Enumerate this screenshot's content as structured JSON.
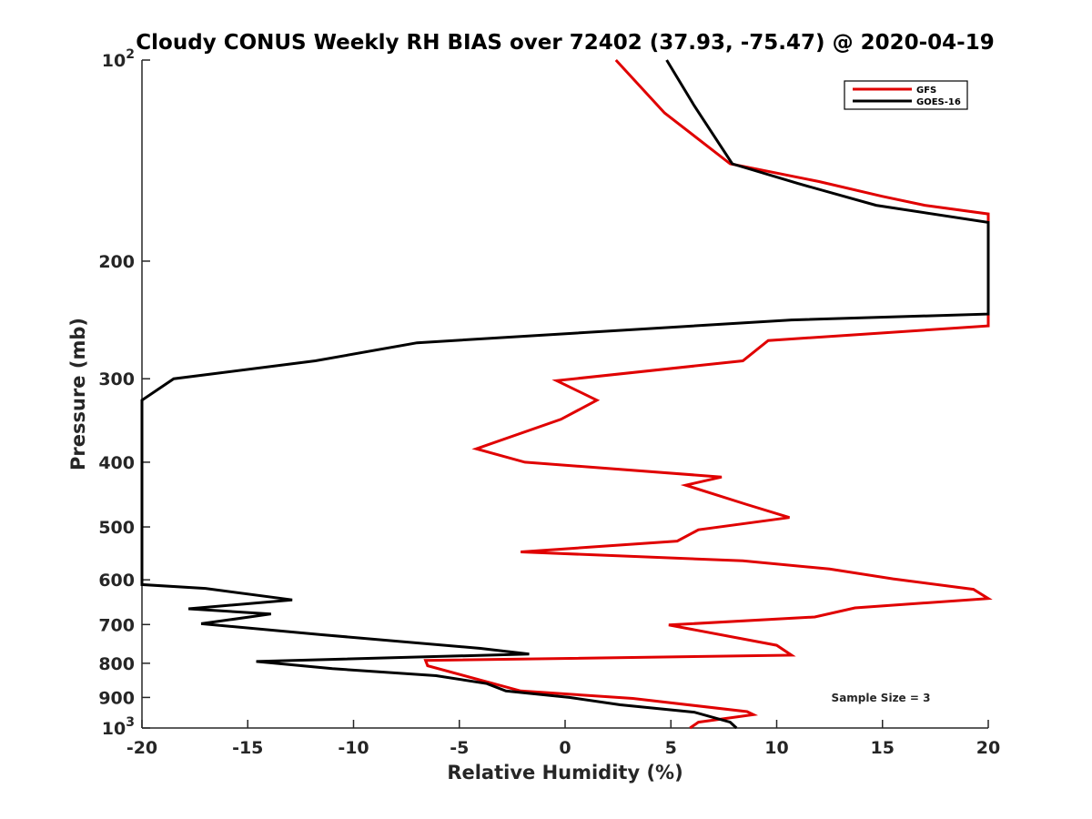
{
  "chart_data": {
    "type": "line",
    "title": "Cloudy CONUS Weekly RH BIAS over 72402 (37.93, -75.47) @ 2020-04-19",
    "xlabel": "Relative Humidity (%)",
    "ylabel": "Pressure (mb)",
    "xlim": [
      -20,
      20
    ],
    "ylim": [
      100,
      1000
    ],
    "y_scale": "log",
    "y_direction": "reversed",
    "grid": false,
    "legend_position": "top-right",
    "annotation": "Sample Size = 3",
    "x_ticks": [
      -20,
      -15,
      -10,
      -5,
      0,
      5,
      10,
      15,
      20
    ],
    "x_tick_labels": [
      "-20",
      "-15",
      "-10",
      "-5",
      "0",
      "5",
      "10",
      "15",
      "20"
    ],
    "y_ticks": [
      100,
      200,
      300,
      400,
      500,
      600,
      700,
      800,
      900,
      1000
    ],
    "y_tick_labels": [
      {
        "base": "10",
        "sup": "2"
      },
      {
        "base": "200",
        "sup": ""
      },
      {
        "base": "300",
        "sup": ""
      },
      {
        "base": "400",
        "sup": ""
      },
      {
        "base": "500",
        "sup": ""
      },
      {
        "base": "600",
        "sup": ""
      },
      {
        "base": "700",
        "sup": ""
      },
      {
        "base": "800",
        "sup": ""
      },
      {
        "base": "900",
        "sup": ""
      },
      {
        "base": "10",
        "sup": "3"
      }
    ],
    "series": [
      {
        "name": "GFS",
        "color": "#e00000",
        "x": [
          2.4,
          4.7,
          7.8,
          12.0,
          15.0,
          17.0,
          20.0,
          20.0,
          9.6,
          8.4,
          -0.4,
          1.5,
          -0.2,
          -4.2,
          -1.9,
          7.4,
          5.7,
          8.6,
          10.6,
          6.3,
          5.3,
          -2.1,
          8.4,
          12.5,
          15.5,
          19.3,
          20.0,
          13.7,
          11.8,
          4.9,
          10.0,
          10.7,
          -6.6,
          -6.5,
          -2.1,
          3.2,
          8.6,
          8.9,
          6.3,
          5.9
        ],
        "y": [
          100,
          120,
          143,
          152,
          160,
          165,
          170,
          250,
          263,
          282,
          302,
          323,
          345,
          382,
          400,
          421,
          433,
          463,
          484,
          505,
          525,
          545,
          562,
          578,
          598,
          620,
          640,
          661,
          682,
          701,
          752,
          778,
          792,
          807,
          880,
          903,
          945,
          955,
          980,
          1000
        ],
        "line_width": 3
      },
      {
        "name": "GOES-16",
        "color": "#000000",
        "x": [
          4.8,
          6.1,
          7.9,
          11.0,
          14.7,
          20.0,
          20.0,
          10.7,
          -7.0,
          -11.8,
          -18.5,
          -20.0,
          -20.0,
          -17.0,
          -12.9,
          -17.8,
          -13.9,
          -17.2,
          -11.5,
          -4.0,
          -1.7,
          -14.6,
          -11.0,
          -6.1,
          -3.7,
          -2.8,
          0.2,
          2.6,
          6.1,
          7.8,
          8.1
        ],
        "y": [
          100,
          117,
          143,
          153,
          165,
          175,
          240,
          245,
          265,
          282,
          300,
          323,
          610,
          618,
          643,
          663,
          675,
          698,
          725,
          760,
          775,
          795,
          815,
          835,
          858,
          880,
          900,
          923,
          947,
          980,
          1000
        ],
        "line_width": 3
      }
    ]
  }
}
